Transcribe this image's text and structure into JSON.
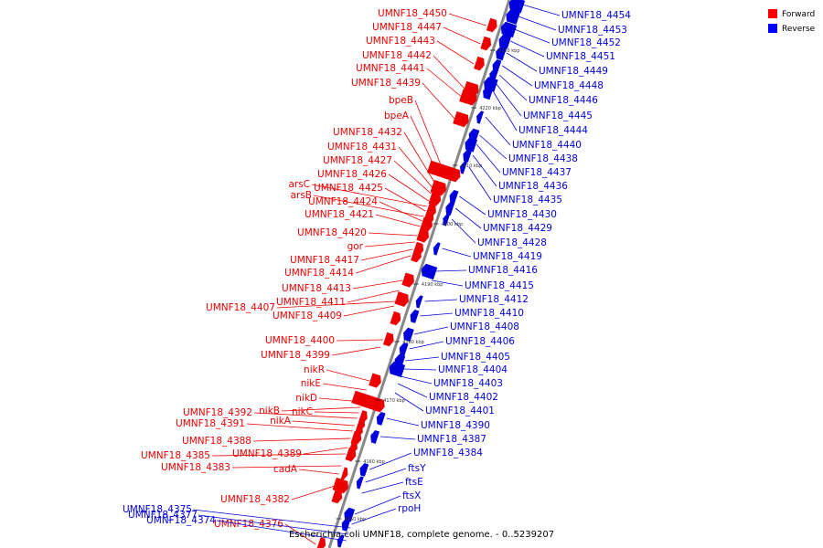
{
  "title": "Escherichia coli UMNF18, complete genome. - 0..5239207",
  "legend": [
    {
      "label": "Forward",
      "color": "#ff0000"
    },
    {
      "label": "Reverse",
      "color": "#0000ff"
    }
  ],
  "colors": {
    "forward": "#ee0000",
    "reverse": "#0000dd",
    "backbone": "#888888"
  },
  "ticks": [
    "4150 kbp",
    "4160 kbp",
    "4170 kbp",
    "4180 kbp",
    "4190 kbp",
    "4200 kbp",
    "4210 kbp",
    "4220 kbp",
    "4230 kbp"
  ],
  "forward_labels": [
    "UMNF18_4450",
    "UMNF18_4447",
    "UMNF18_4443",
    "UMNF18_4442",
    "UMNF18_4441",
    "UMNF18_4439",
    "bpeB",
    "bpeA",
    "UMNF18_4432",
    "UMNF18_4431",
    "UMNF18_4427",
    "UMNF18_4426",
    "arsC",
    "UMNF18_4425",
    "arsB",
    "UMNF18_4424",
    "UMNF18_4421",
    "UMNF18_4420",
    "gor",
    "UMNF18_4417",
    "UMNF18_4414",
    "UMNF18_4413",
    "UMNF18_4411",
    "UMNF18_4407",
    "UMNF18_4409",
    "UMNF18_4400",
    "UMNF18_4399",
    "nikR",
    "nikE",
    "nikD",
    "nikB",
    "nikC",
    "UMNF18_4392",
    "nikA",
    "UMNF18_4391",
    "UMNF18_4388",
    "UMNF18_4389",
    "UMNF18_4385",
    "UMNF18_4383",
    "cadA",
    "UMNF18_4382",
    "UMNF18_4376"
  ],
  "reverse_labels": [
    "UMNF18_4454",
    "UMNF18_4453",
    "UMNF18_4452",
    "UMNF18_4451",
    "UMNF18_4449",
    "UMNF18_4448",
    "UMNF18_4446",
    "UMNF18_4445",
    "UMNF18_4444",
    "UMNF18_4440",
    "UMNF18_4438",
    "UMNF18_4437",
    "UMNF18_4436",
    "UMNF18_4435",
    "UMNF18_4430",
    "UMNF18_4429",
    "UMNF18_4428",
    "UMNF18_4419",
    "UMNF18_4416",
    "UMNF18_4415",
    "UMNF18_4412",
    "UMNF18_4410",
    "UMNF18_4408",
    "UMNF18_4406",
    "UMNF18_4405",
    "UMNF18_4404",
    "UMNF18_4403",
    "UMNF18_4402",
    "UMNF18_4401",
    "UMNF18_4390",
    "UMNF18_4387",
    "UMNF18_4384",
    "ftsY",
    "ftsE",
    "ftsX",
    "rpoH",
    "UMNF18_4375",
    "UMNF18_4377",
    "UMNF18_4374"
  ]
}
